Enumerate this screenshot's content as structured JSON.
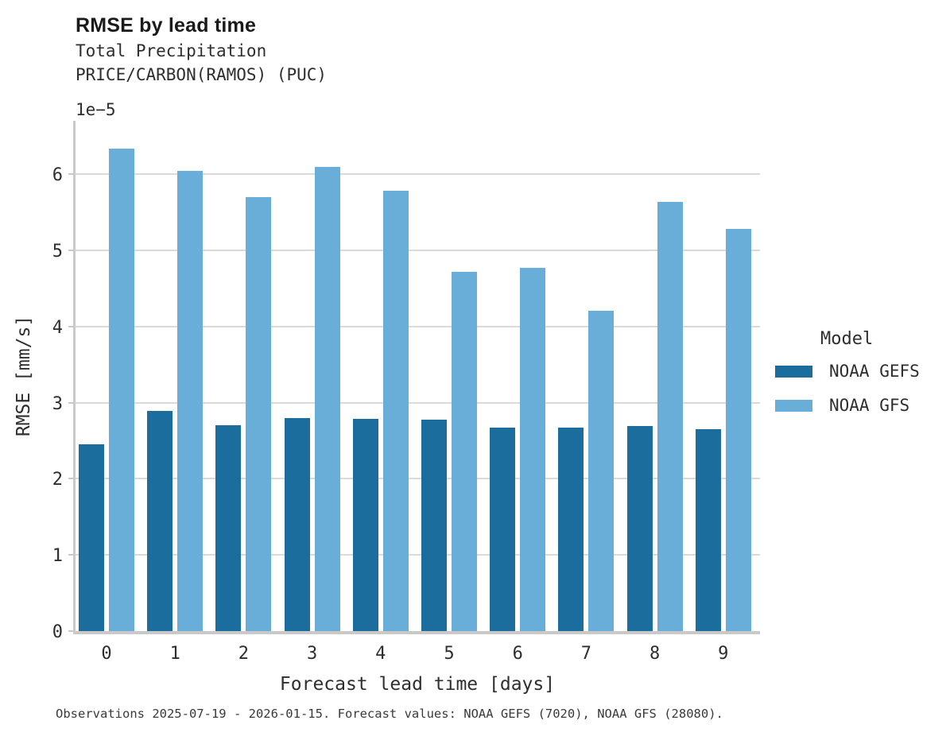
{
  "header": {
    "title": "RMSE by lead time",
    "subtitle_line1": "Total Precipitation",
    "subtitle_line2": "PRICE/CARBON(RAMOS) (PUC)"
  },
  "axes": {
    "offset_label": "1e−5",
    "ylabel": "RMSE [mm/s]",
    "xlabel": "Forecast lead time [days]"
  },
  "legend": {
    "title": "Model",
    "items": [
      {
        "label": "NOAA GEFS",
        "color": "#1a6d9d"
      },
      {
        "label": "NOAA GFS",
        "color": "#69aed8"
      }
    ]
  },
  "caption": "Observations 2025-07-19 - 2026-01-15. Forecast values: NOAA GEFS (7020), NOAA GFS (28080).",
  "colors": {
    "gridline": "#dadada",
    "spine": "#c9c9c9",
    "gefs_bar": "#1a6d9d",
    "gfs_bar": "#69aed8"
  },
  "chart_data": {
    "type": "bar",
    "title": "RMSE by lead time",
    "subtitle": [
      "Total Precipitation",
      "PRICE/CARBON(RAMOS) (PUC)"
    ],
    "xlabel": "Forecast lead time [days]",
    "ylabel": "RMSE [mm/s]",
    "y_offset_multiplier": "1e-5",
    "values_unit": "x1e-5 mm/s",
    "categories": [
      "0",
      "1",
      "2",
      "3",
      "4",
      "5",
      "6",
      "7",
      "8",
      "9"
    ],
    "series": [
      {
        "name": "NOAA GEFS",
        "color": "#1a6d9d",
        "values": [
          2.45,
          2.89,
          2.7,
          2.8,
          2.79,
          2.78,
          2.67,
          2.67,
          2.69,
          2.65
        ]
      },
      {
        "name": "NOAA GFS",
        "color": "#69aed8",
        "values": [
          6.34,
          6.04,
          5.7,
          6.1,
          5.78,
          4.72,
          4.77,
          4.21,
          5.64,
          5.28
        ]
      }
    ],
    "ylim": [
      0,
      6.7
    ],
    "yticks": [
      0,
      1,
      2,
      3,
      4,
      5,
      6
    ],
    "grid": "horizontal",
    "legend_position": "right",
    "legend_title": "Model"
  }
}
